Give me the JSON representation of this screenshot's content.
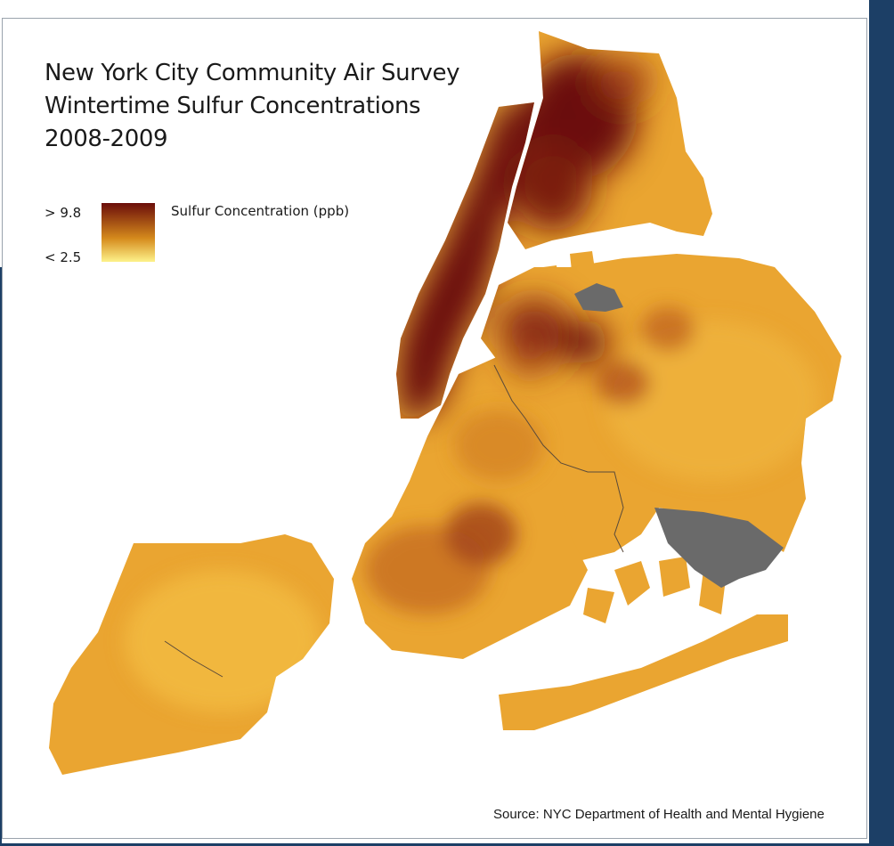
{
  "title_lines": [
    "New York City Community Air Survey",
    "Wintertime Sulfur Concentrations",
    "2008-2009"
  ],
  "legend": {
    "high_label": "> 9.8",
    "low_label": "< 2.5",
    "title": "Sulfur Concentration (ppb)",
    "color_high": "#6b0d0a",
    "color_mid": "#d58a1c",
    "color_low": "#fdf28a"
  },
  "source": "Source: NYC Department of Health and Mental Hygiene",
  "colors": {
    "land_base": "#eaa531",
    "land_light": "#f0b63b",
    "hotspot_dark": "#6b0d0a",
    "hotspot_mid": "#b5561c",
    "airport_gray": "#6a6a6a",
    "edge_blue": "#1c3f66"
  }
}
